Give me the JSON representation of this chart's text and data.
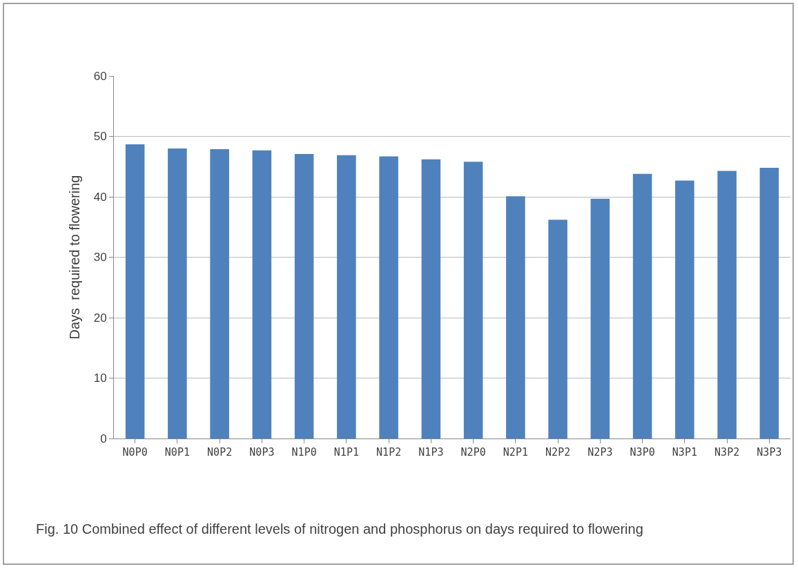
{
  "chart_data": {
    "type": "bar",
    "ylabel": "Days  required to flowering",
    "categories": [
      "N0P0",
      "N0P1",
      "N0P2",
      "N0P3",
      "N1P0",
      "N1P1",
      "N1P2",
      "N1P3",
      "N2P0",
      "N2P1",
      "N2P2",
      "N2P3",
      "N3P0",
      "N3P1",
      "N3P2",
      "N3P3"
    ],
    "values": [
      48.7,
      48.0,
      47.9,
      47.7,
      47.1,
      46.9,
      46.7,
      46.2,
      45.8,
      40.1,
      36.2,
      39.7,
      43.8,
      42.7,
      44.3,
      44.8
    ],
    "color": "#4f81bd",
    "ylim": [
      0,
      60
    ],
    "yticks": [
      0,
      10,
      20,
      30,
      40,
      50,
      60
    ],
    "grid": "y",
    "annotations": [
      "Fig. 10 Combined effect of different levels of nitrogen and phosphorus on days required to flowering"
    ]
  }
}
